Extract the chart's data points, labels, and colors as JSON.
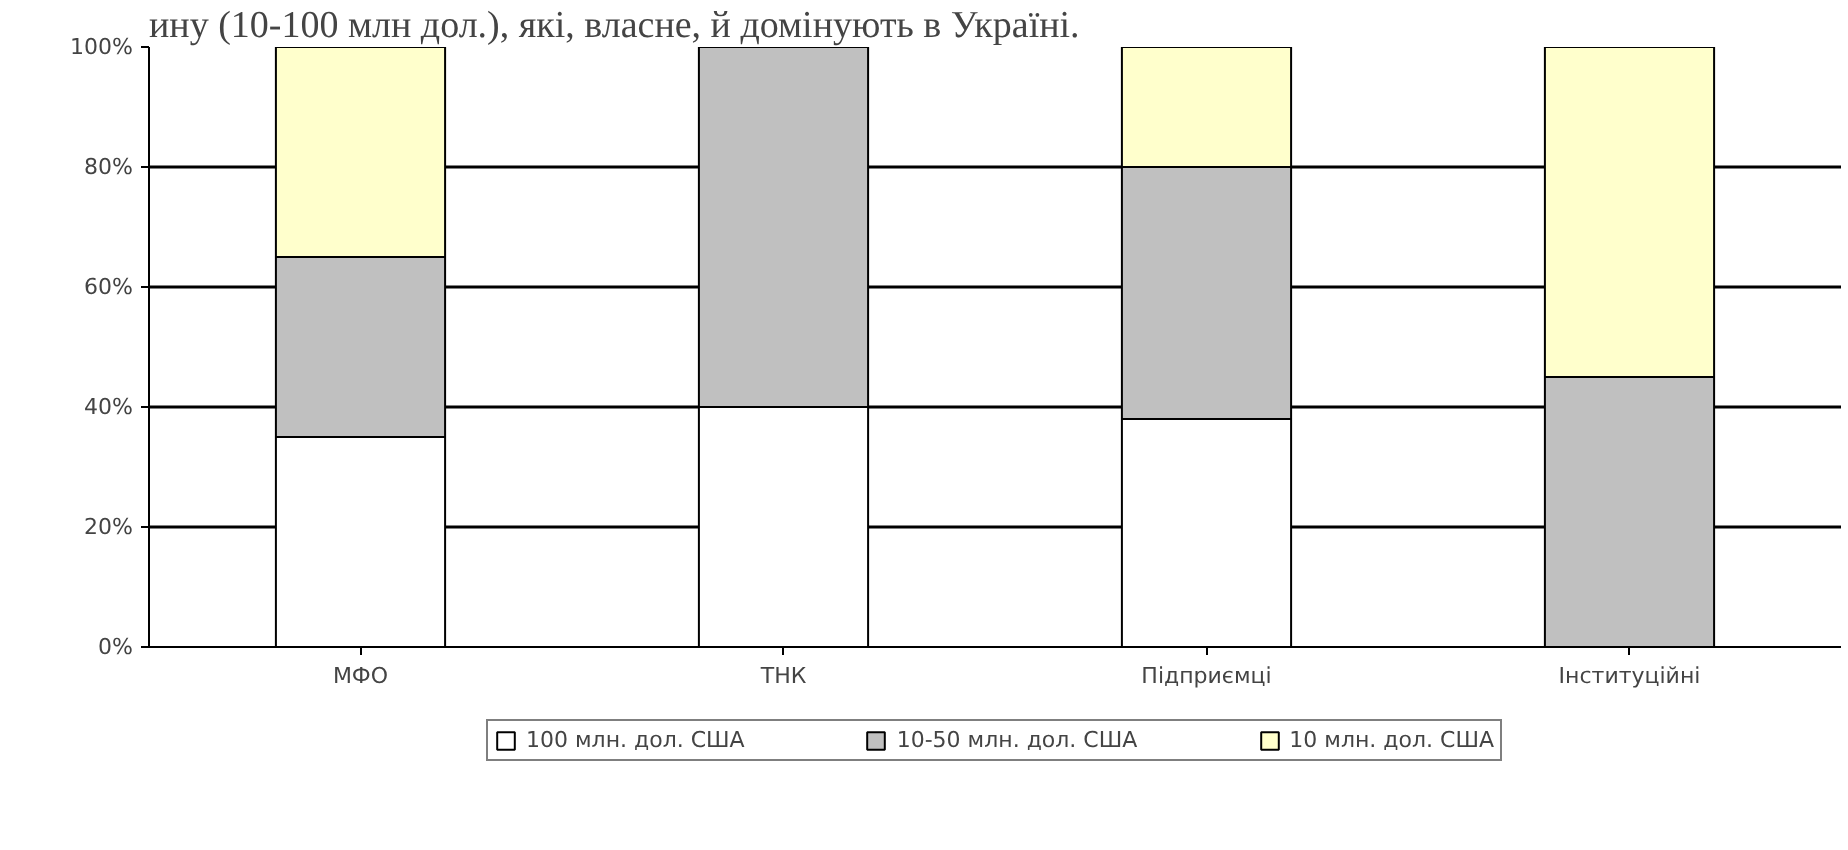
{
  "chart_data": {
    "type": "bar",
    "stacked": true,
    "title": "ину (10-100 млн дол.), які, власне, й домінують в Україні.",
    "categories": [
      "МФО",
      "ТНК",
      "Підприємці",
      "Інституційні"
    ],
    "series": [
      {
        "name": "100 млн. дол. США",
        "color": "#ffffff",
        "values": [
          35,
          40,
          38,
          0
        ]
      },
      {
        "name": "10-50 млн. дол. США",
        "color": "#c0c0c0",
        "values": [
          30,
          60,
          42,
          45
        ]
      },
      {
        "name": "10 млн. дол. США",
        "color": "#ffffcc",
        "values": [
          35,
          0,
          20,
          55
        ]
      }
    ],
    "ylim": [
      0,
      100
    ],
    "yticks": [
      {
        "value": 0,
        "label": "0%"
      },
      {
        "value": 20,
        "label": "20%"
      },
      {
        "value": 40,
        "label": "40%"
      },
      {
        "value": 60,
        "label": "60%"
      },
      {
        "value": 80,
        "label": "80%"
      },
      {
        "value": 100,
        "label": "100%"
      }
    ],
    "grid": "y",
    "legend": "bottom"
  }
}
